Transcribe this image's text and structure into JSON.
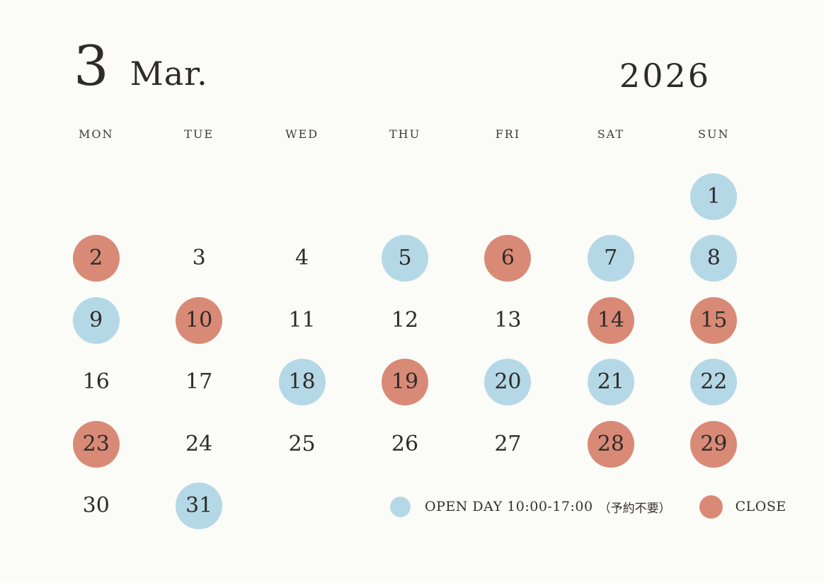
{
  "header": {
    "month_number": "3",
    "month_name": "Mar.",
    "year": "2026"
  },
  "calendar": {
    "weekdays": [
      "MON",
      "TUE",
      "WED",
      "THU",
      "FRI",
      "SAT",
      "SUN"
    ],
    "first_day_column": 7,
    "days": [
      {
        "day": "1",
        "status": "open"
      },
      {
        "day": "2",
        "status": "close"
      },
      {
        "day": "3",
        "status": "plain"
      },
      {
        "day": "4",
        "status": "plain"
      },
      {
        "day": "5",
        "status": "open"
      },
      {
        "day": "6",
        "status": "close"
      },
      {
        "day": "7",
        "status": "open"
      },
      {
        "day": "8",
        "status": "open"
      },
      {
        "day": "9",
        "status": "open"
      },
      {
        "day": "10",
        "status": "close"
      },
      {
        "day": "11",
        "status": "plain"
      },
      {
        "day": "12",
        "status": "plain"
      },
      {
        "day": "13",
        "status": "plain"
      },
      {
        "day": "14",
        "status": "close"
      },
      {
        "day": "15",
        "status": "close"
      },
      {
        "day": "16",
        "status": "plain"
      },
      {
        "day": "17",
        "status": "plain"
      },
      {
        "day": "18",
        "status": "open"
      },
      {
        "day": "19",
        "status": "close"
      },
      {
        "day": "20",
        "status": "open"
      },
      {
        "day": "21",
        "status": "open"
      },
      {
        "day": "22",
        "status": "open"
      },
      {
        "day": "23",
        "status": "close"
      },
      {
        "day": "24",
        "status": "plain"
      },
      {
        "day": "25",
        "status": "plain"
      },
      {
        "day": "26",
        "status": "plain"
      },
      {
        "day": "27",
        "status": "plain"
      },
      {
        "day": "28",
        "status": "close"
      },
      {
        "day": "29",
        "status": "close"
      },
      {
        "day": "30",
        "status": "plain"
      },
      {
        "day": "31",
        "status": "open"
      }
    ]
  },
  "legend": {
    "open": {
      "label": "OPEN DAY 10:00-17:00",
      "note": "（予約不要）"
    },
    "close": {
      "label": "CLOSE"
    }
  },
  "colors": {
    "open_day": "#b5d8e6",
    "close_day": "#d88a76",
    "text": "#2e2c2a",
    "background": "#fbfbf8"
  }
}
